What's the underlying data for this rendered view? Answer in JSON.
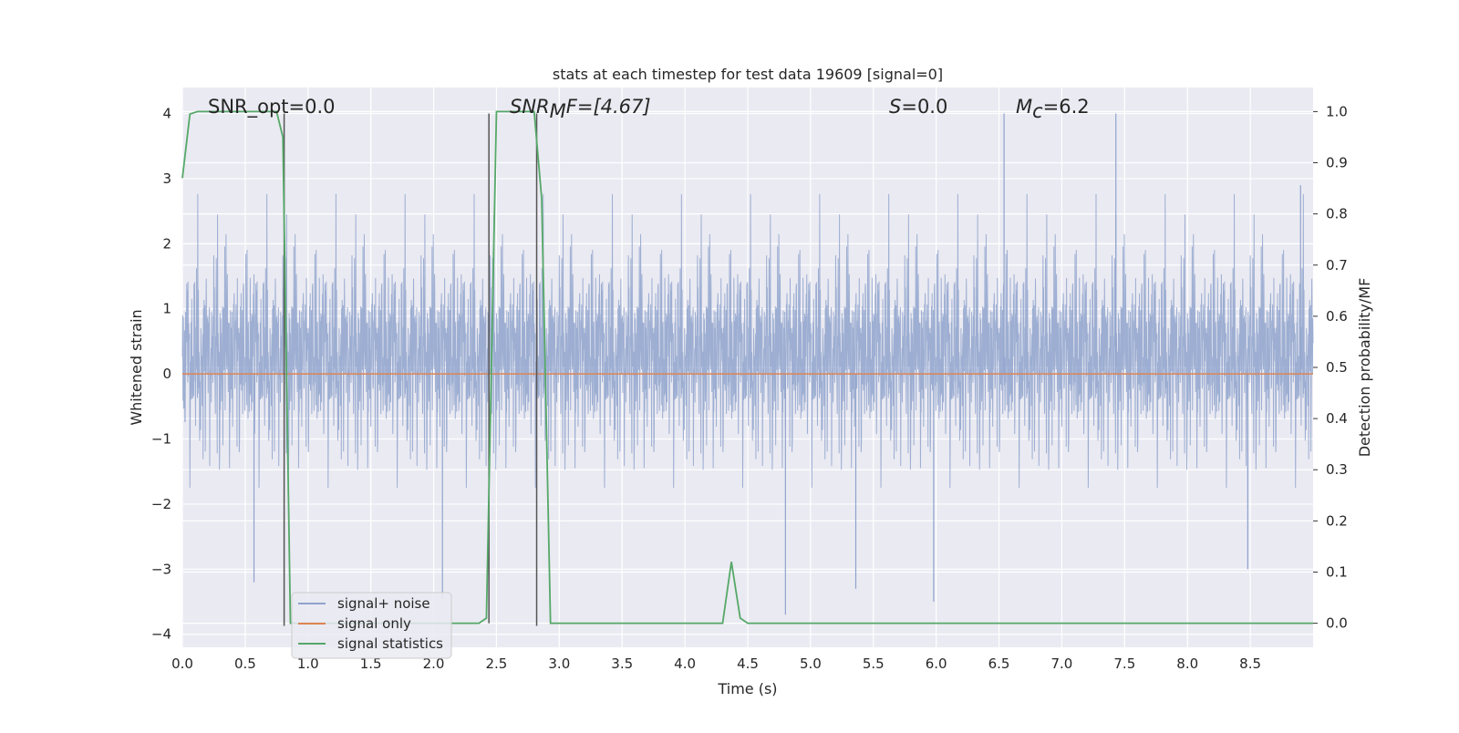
{
  "chart_data": {
    "type": "line",
    "title": "stats at each timestep for test data 19609 [signal=0]",
    "xlabel": "Time (s)",
    "ylabel_left": "Whitened strain",
    "ylabel_right": "Detection probability/MF",
    "xlim": [
      0.0,
      9.0
    ],
    "ylim_left": [
      -4.2,
      4.4
    ],
    "ylim_right": [
      -0.047,
      1.047
    ],
    "x_ticks": [
      "0.0",
      "0.5",
      "1.0",
      "1.5",
      "2.0",
      "2.5",
      "3.0",
      "3.5",
      "4.0",
      "4.5",
      "5.0",
      "5.5",
      "6.0",
      "6.5",
      "7.0",
      "7.5",
      "8.0",
      "8.5"
    ],
    "y_left_ticks": [
      "4",
      "3",
      "2",
      "1",
      "0",
      "−1",
      "−2",
      "−3",
      "−4"
    ],
    "y_right_ticks": [
      "1.0",
      "0.9",
      "0.8",
      "0.7",
      "0.6",
      "0.5",
      "0.4",
      "0.3",
      "0.2",
      "0.1",
      "0.0"
    ],
    "grid": true,
    "legend_position": "lower-left",
    "annotations": {
      "snr_opt": "SNR_opt=0.0",
      "snr_mf_main": "SNR",
      "snr_mf_sub": "M",
      "snr_mf_rest": "F=[4.67]",
      "s_main": "S",
      "s_rest": "=0.0",
      "mc_main": "M",
      "mc_sub": "c",
      "mc_rest": "=6.2"
    },
    "series": [
      {
        "name": "signal+ noise",
        "color": "#8fa3cc",
        "axis": "left",
        "note_values": "dense noise trace; envelope approx ±1.6 with spikes up to +4.0 and down to −3.7",
        "spikes": [
          [
            0.57,
            -3.2
          ],
          [
            2.07,
            -3.45
          ],
          [
            4.8,
            -3.7
          ],
          [
            5.36,
            -3.3
          ],
          [
            5.98,
            -3.5
          ],
          [
            6.54,
            4.0
          ],
          [
            7.43,
            4.0
          ],
          [
            8.48,
            -3.0
          ],
          [
            8.9,
            2.9
          ]
        ]
      },
      {
        "name": "signal only",
        "color": "#dd8452",
        "axis": "left",
        "x": [
          0.0,
          9.0
        ],
        "values": [
          0.0,
          0.0
        ]
      },
      {
        "name": "signal statistics",
        "color": "#55a868",
        "axis": "right",
        "x": [
          0.0,
          0.06,
          0.12,
          0.2,
          0.5,
          0.75,
          0.8,
          0.86,
          0.92,
          2.36,
          2.42,
          2.5,
          2.53,
          2.8,
          2.86,
          2.93,
          3.0,
          4.3,
          4.37,
          4.44,
          4.5,
          9.0
        ],
        "values": [
          0.87,
          0.995,
          1.0,
          1.0,
          1.0,
          1.0,
          0.95,
          0.0,
          0.0,
          0.0,
          0.01,
          1.0,
          1.0,
          1.0,
          0.83,
          0.0,
          0.0,
          0.0,
          0.12,
          0.01,
          0.0,
          0.0
        ]
      }
    ],
    "vertical_markers": [
      {
        "x": 0.81,
        "y_from": -3.87,
        "y_to": 4.0,
        "color": "#555555"
      },
      {
        "x": 2.44,
        "y_from": -3.83,
        "y_to": 4.0,
        "color": "#555555"
      },
      {
        "x": 2.82,
        "y_from": -3.87,
        "y_to": 4.0,
        "color": "#555555"
      }
    ],
    "legend": [
      {
        "label": "signal+ noise",
        "color": "#8fa3cc"
      },
      {
        "label": "signal only",
        "color": "#dd8452"
      },
      {
        "label": "signal statistics",
        "color": "#55a868"
      }
    ]
  }
}
